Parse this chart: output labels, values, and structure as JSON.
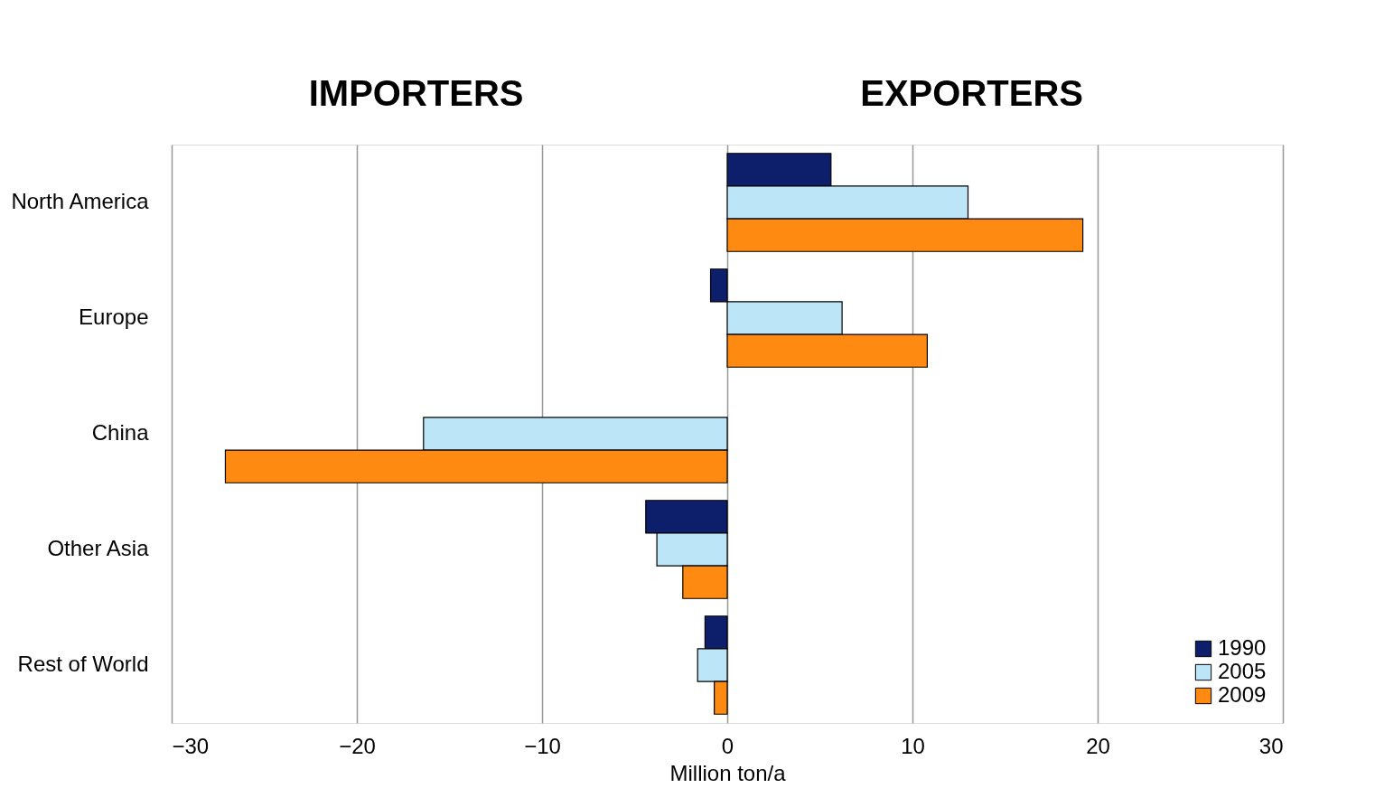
{
  "chart_data": {
    "type": "bar",
    "orientation": "horizontal",
    "annotations": [
      "IMPORTERS",
      "EXPORTERS"
    ],
    "xlabel": "Million ton/a",
    "categories": [
      "North America",
      "Europe",
      "China",
      "Other Asia",
      "Rest of World"
    ],
    "series": [
      {
        "name": "1990",
        "color": "#0d1f6b",
        "values": [
          5.6,
          -0.9,
          null,
          -4.4,
          -1.2
        ]
      },
      {
        "name": "2005",
        "color": "#bde5f8",
        "values": [
          13.0,
          6.2,
          -16.4,
          -3.8,
          -1.6
        ]
      },
      {
        "name": "2009",
        "color": "#ff8a12",
        "values": [
          19.2,
          10.8,
          -27.1,
          -2.4,
          -0.7
        ]
      }
    ],
    "xlim": [
      -30,
      30
    ],
    "xticks": [
      -30,
      -20,
      -10,
      0,
      10,
      20,
      30
    ],
    "grid": "x",
    "legend": "bottom right"
  }
}
